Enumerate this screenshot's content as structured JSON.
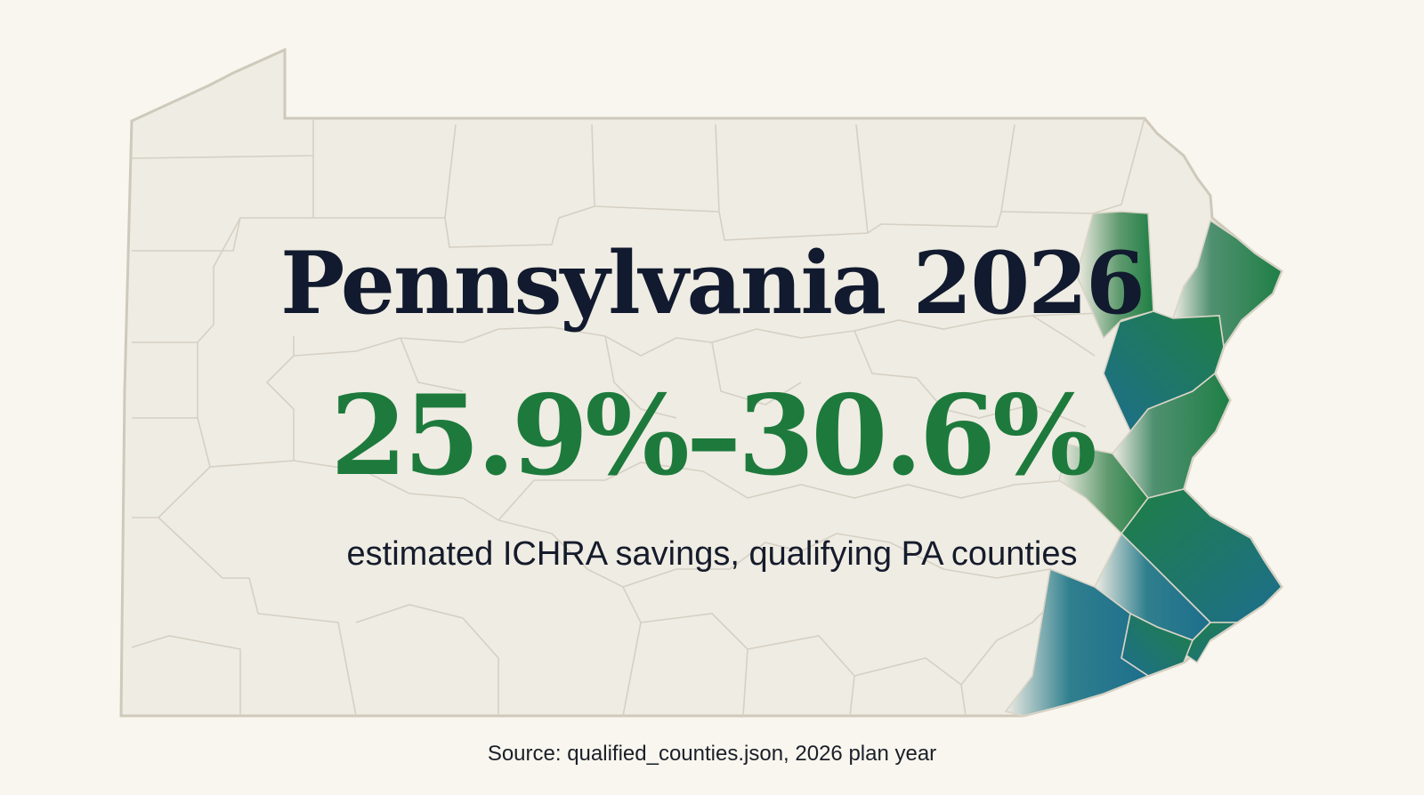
{
  "title": "Pennsylvania 2026",
  "headline_stat": "25.9%–30.6%",
  "subtitle": "estimated ICHRA savings, qualifying PA counties",
  "source": "Source: qualified_counties.json, 2026 plan year",
  "map": {
    "state": "Pennsylvania",
    "highlight_region": "eastern counties",
    "colors": {
      "background": "#f8f6ee",
      "land": "#efece3",
      "county_border": "#cfc9bc",
      "highlight_green": "#1f7f45",
      "highlight_blue": "#1d6e8c"
    }
  }
}
